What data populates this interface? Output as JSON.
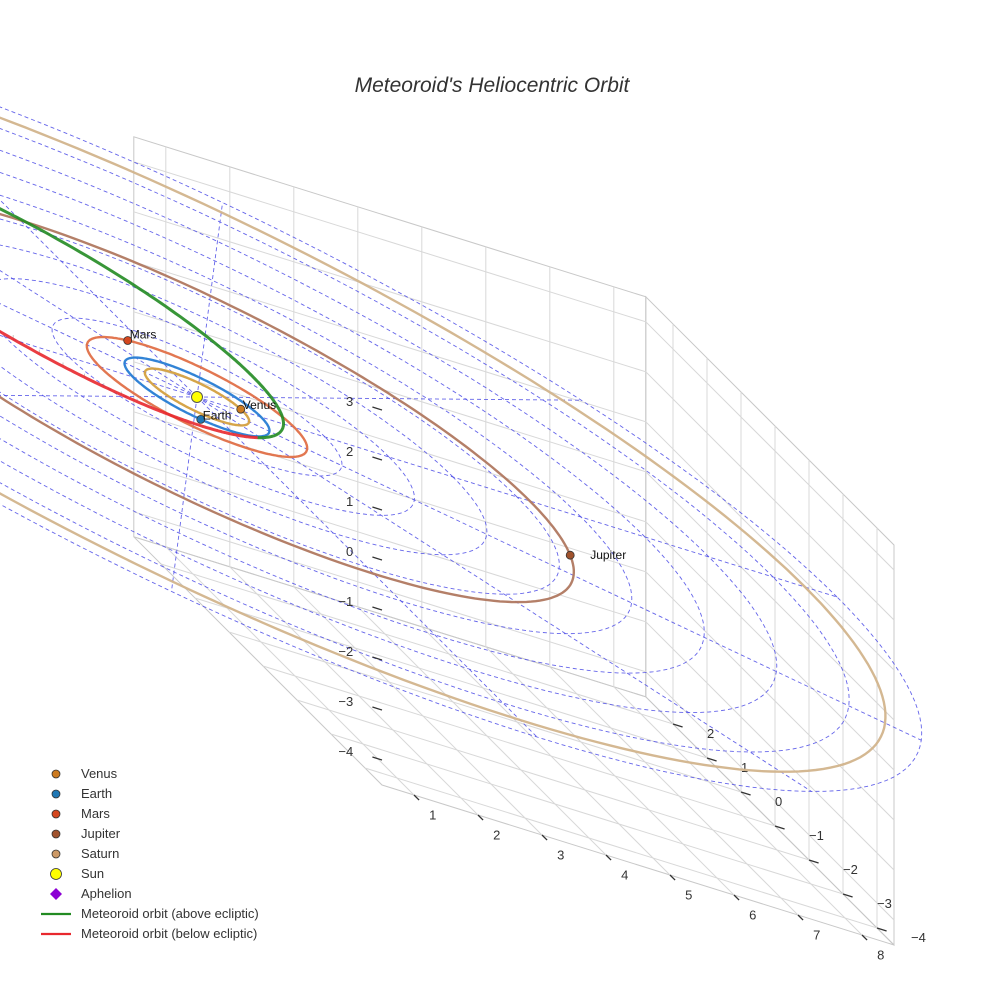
{
  "chart_data": {
    "type": "scatter3d",
    "title": "Meteoroid's Heliocentric Orbit",
    "axes": {
      "x": {
        "range": [
          0.5,
          8.5
        ],
        "ticks": [
          1,
          2,
          3,
          4,
          5,
          6,
          7,
          8
        ],
        "grid": true
      },
      "y": {
        "range": [
          -4.5,
          2.8
        ],
        "ticks": [
          -4,
          -3,
          -2,
          -1,
          0,
          1,
          2
        ],
        "grid": true
      },
      "z": {
        "range": [
          -4.5,
          3.5
        ],
        "ticks": [
          -4,
          -3,
          -2,
          -1,
          0,
          1,
          2,
          3
        ],
        "grid": true
      }
    },
    "ecliptic_grid": {
      "ring_radii_au": [
        1,
        2,
        3,
        4,
        5,
        6,
        7,
        8,
        9,
        10
      ],
      "spokes_deg": 30,
      "color": "#4a4ae6"
    },
    "sun": {
      "name": "Sun",
      "position": [
        0,
        0,
        0
      ],
      "color": "#ffff00"
    },
    "planets": [
      {
        "name": "Venus",
        "orbit_radius_au": 0.72,
        "color": "#cc7a1f",
        "orbit_color": "#d4a040",
        "position_angle_deg": 5,
        "show_label": true
      },
      {
        "name": "Earth",
        "orbit_radius_au": 1.0,
        "color": "#1f77b4",
        "orbit_color": "#2a7fd4",
        "position_angle_deg": 245,
        "show_label": true
      },
      {
        "name": "Mars",
        "orbit_radius_au": 1.52,
        "color": "#d4471f",
        "orbit_color": "#e07048",
        "position_angle_deg": 101,
        "show_label": true
      },
      {
        "name": "Jupiter",
        "orbit_radius_au": 5.2,
        "color": "#a0522d",
        "orbit_color": "#b07860",
        "position_angle_deg": 340,
        "show_label": true
      },
      {
        "name": "Saturn",
        "orbit_radius_au": 9.5,
        "color": "#cc9966",
        "orbit_color": "#d2b48c",
        "position_angle_deg": null,
        "show_label": false
      }
    ],
    "meteoroid_orbit": {
      "semi_major_axis_au": 3.69,
      "eccentricity": 0.72,
      "inclination_deg": 2,
      "node_deg": -64,
      "arg_perihelion_deg": 0,
      "above_color": "#228b22",
      "below_color": "#e8282e"
    },
    "aphelion": {
      "name": "Aphelion",
      "color": "#8b00d4"
    },
    "legend": {
      "placement": "bottom-left",
      "entries": [
        {
          "label": "Venus",
          "symbol": "circle",
          "color": "#cc7a1f"
        },
        {
          "label": "Earth",
          "symbol": "circle",
          "color": "#1f77b4"
        },
        {
          "label": "Mars",
          "symbol": "circle",
          "color": "#d4471f"
        },
        {
          "label": "Jupiter",
          "symbol": "circle",
          "color": "#a0522d"
        },
        {
          "label": "Saturn",
          "symbol": "circle",
          "color": "#cc9966"
        },
        {
          "label": "Sun",
          "symbol": "circle",
          "color": "#ffff00"
        },
        {
          "label": "Aphelion",
          "symbol": "diamond",
          "color": "#8b00d4"
        },
        {
          "label": "Meteoroid orbit (above ecliptic)",
          "symbol": "line",
          "color": "#228b22"
        },
        {
          "label": "Meteoroid orbit (below ecliptic)",
          "symbol": "line",
          "color": "#e8282e"
        }
      ]
    }
  }
}
